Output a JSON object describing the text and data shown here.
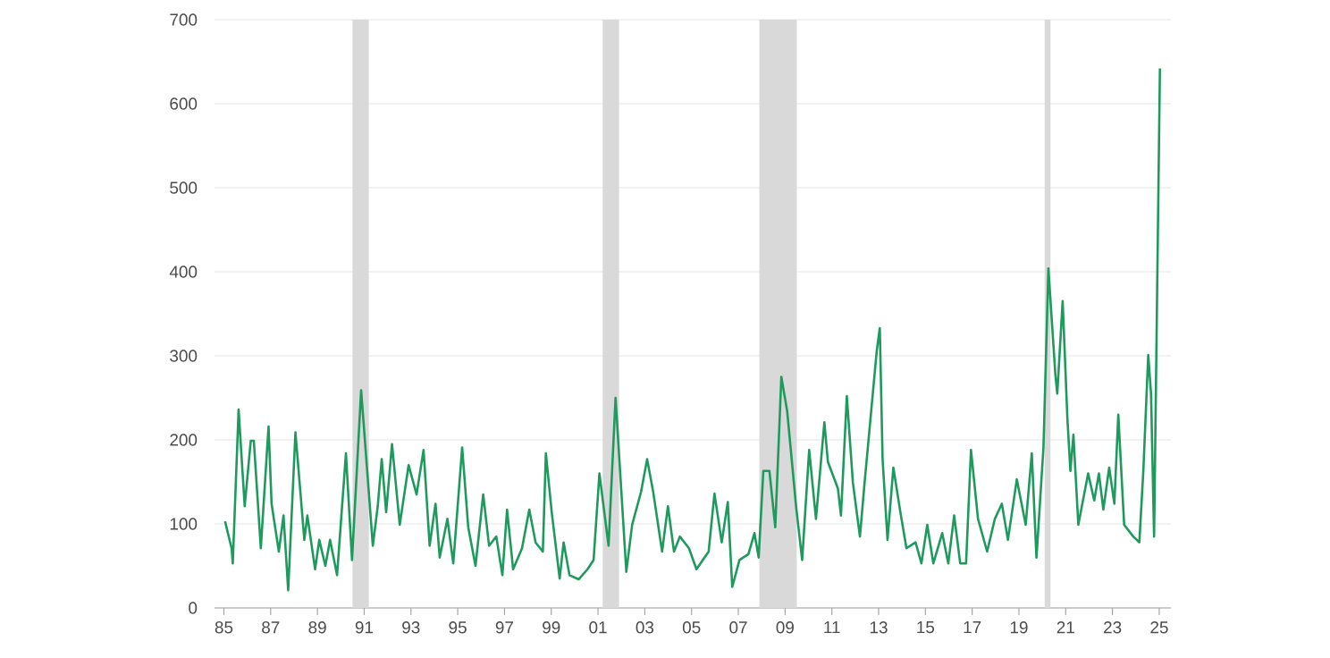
{
  "chart_data": {
    "type": "line",
    "x": [
      1985.05,
      1985.33,
      1985.38,
      1985.63,
      1985.89,
      1986.15,
      1986.28,
      1986.58,
      1986.91,
      1987.04,
      1987.35,
      1987.55,
      1987.75,
      1988.06,
      1988.44,
      1988.57,
      1988.9,
      1989.08,
      1989.34,
      1989.54,
      1989.84,
      1990.22,
      1990.48,
      1990.87,
      1991.37,
      1991.58,
      1991.75,
      1991.94,
      1992.19,
      1992.52,
      1992.9,
      1993.24,
      1993.54,
      1993.8,
      1994.05,
      1994.23,
      1994.56,
      1994.81,
      1995.19,
      1995.45,
      1995.76,
      1996.09,
      1996.34,
      1996.65,
      1996.91,
      1997.11,
      1997.37,
      1997.75,
      1998.06,
      1998.33,
      1998.64,
      1998.77,
      1999.02,
      1999.36,
      1999.53,
      1999.78,
      2000.17,
      2000.55,
      2000.81,
      2001.06,
      2001.45,
      2001.75,
      2002.21,
      2002.46,
      2002.84,
      2003.1,
      2003.36,
      2003.74,
      2003.99,
      2004.25,
      2004.5,
      2004.89,
      2005.21,
      2005.73,
      2005.98,
      2006.29,
      2006.55,
      2006.74,
      2007.05,
      2007.43,
      2007.69,
      2007.87,
      2008.07,
      2008.33,
      2008.58,
      2008.84,
      2009.09,
      2009.47,
      2009.73,
      2010.03,
      2010.32,
      2010.68,
      2010.83,
      2011.26,
      2011.39,
      2011.64,
      2011.9,
      2012.2,
      2012.4,
      2012.92,
      2013.05,
      2013.17,
      2013.38,
      2013.63,
      2013.93,
      2014.19,
      2014.58,
      2014.83,
      2015.08,
      2015.34,
      2015.72,
      2015.98,
      2016.23,
      2016.49,
      2016.74,
      2016.95,
      2017.25,
      2017.64,
      2017.97,
      2018.27,
      2018.53,
      2018.91,
      2019.29,
      2019.55,
      2019.75,
      2020.05,
      2020.26,
      2020.56,
      2020.64,
      2020.87,
      2021.07,
      2021.2,
      2021.33,
      2021.54,
      2021.96,
      2022.22,
      2022.42,
      2022.61,
      2022.86,
      2023.08,
      2023.25,
      2023.5,
      2023.89,
      2024.15,
      2024.32,
      2024.53,
      2024.65,
      2024.78,
      2025.03
    ],
    "series": [
      {
        "color": "#1f9a5e",
        "values": [
          103,
          71,
          53,
          236,
          121,
          199,
          199,
          71,
          216,
          124,
          67,
          110,
          21,
          209,
          81,
          110,
          46,
          81,
          50,
          81,
          39,
          184,
          57,
          259,
          74,
          121,
          177,
          114,
          195,
          99,
          170,
          135,
          188,
          74,
          124,
          60,
          106,
          53,
          191,
          96,
          50,
          135,
          74,
          85,
          39,
          117,
          46,
          71,
          117,
          78,
          67,
          184,
          114,
          35,
          78,
          39,
          34,
          46,
          57,
          160,
          74,
          250,
          43,
          99,
          138,
          177,
          138,
          67,
          121,
          67,
          85,
          71,
          46,
          67,
          136,
          78,
          126,
          25,
          57,
          64,
          89,
          60,
          163,
          163,
          96,
          275,
          234,
          121,
          57,
          188,
          106,
          221,
          174,
          142,
          110,
          252,
          149,
          85,
          149,
          306,
          333,
          177,
          81,
          167,
          114,
          71,
          78,
          53,
          99,
          53,
          89,
          53,
          110,
          53,
          53,
          188,
          106,
          67,
          106,
          124,
          81,
          153,
          99,
          184,
          60,
          191,
          404,
          277,
          255,
          365,
          227,
          163,
          206,
          99,
          160,
          128,
          160,
          117,
          167,
          124,
          230,
          99,
          85,
          78,
          163,
          301,
          255,
          85,
          642
        ]
      }
    ],
    "xlim": [
      1984.6,
      2025.5
    ],
    "ylim": [
      0,
      700
    ],
    "xticks": [
      {
        "value": 1985,
        "label": "85"
      },
      {
        "value": 1987,
        "label": "87"
      },
      {
        "value": 1989,
        "label": "89"
      },
      {
        "value": 1991,
        "label": "91"
      },
      {
        "value": 1993,
        "label": "93"
      },
      {
        "value": 1995,
        "label": "95"
      },
      {
        "value": 1997,
        "label": "97"
      },
      {
        "value": 1999,
        "label": "99"
      },
      {
        "value": 2001,
        "label": "01"
      },
      {
        "value": 2003,
        "label": "03"
      },
      {
        "value": 2005,
        "label": "05"
      },
      {
        "value": 2007,
        "label": "07"
      },
      {
        "value": 2009,
        "label": "09"
      },
      {
        "value": 2011,
        "label": "11"
      },
      {
        "value": 2013,
        "label": "13"
      },
      {
        "value": 2015,
        "label": "15"
      },
      {
        "value": 2017,
        "label": "17"
      },
      {
        "value": 2019,
        "label": "19"
      },
      {
        "value": 2021,
        "label": "21"
      },
      {
        "value": 2023,
        "label": "23"
      },
      {
        "value": 2025,
        "label": "25"
      }
    ],
    "yticks": [
      0,
      100,
      200,
      300,
      400,
      500,
      600,
      700
    ],
    "bands": [
      {
        "axis": "x",
        "from": 1990.5,
        "to": 1991.2,
        "color": "#d9d9d9"
      },
      {
        "axis": "x",
        "from": 2001.2,
        "to": 2001.9,
        "color": "#d9d9d9"
      },
      {
        "axis": "x",
        "from": 2007.9,
        "to": 2009.5,
        "color": "#d9d9d9"
      },
      {
        "axis": "x",
        "from": 2020.1,
        "to": 2020.35,
        "color": "#d9d9d9"
      }
    ],
    "grid": "y",
    "marker": "none",
    "line_style": "solid"
  }
}
